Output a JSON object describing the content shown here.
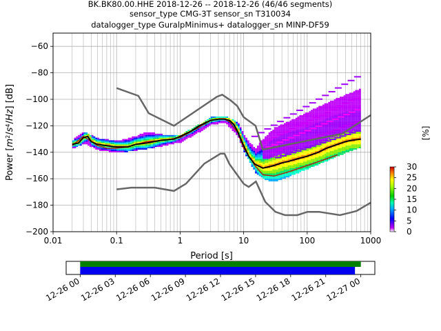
{
  "title_lines": [
    "BK.BK80.00.HHE   2018-12-26 -- 2018-12-26  (46/46 segments)",
    "sensor_type CMG-3T sensor_sn T310034",
    "datalogger_type GuralpMinimus+ datalogger_sn MINP-DF59"
  ],
  "chart_data": [
    {
      "type": "heatmap",
      "title": "BK.BK80.00.HHE   2018-12-26 -- 2018-12-26  (46/46 segments)",
      "xlabel": "Period [s]",
      "ylabel": "Power [m²/s⁴/Hz] [dB]",
      "x_scale": "log",
      "xlim": [
        0.01,
        1000
      ],
      "ylim": [
        -200,
        -50
      ],
      "x_ticks": [
        0.01,
        0.1,
        1,
        10,
        100,
        1000
      ],
      "x_tick_labels": [
        "0.01",
        "0.1",
        "1",
        "10",
        "100",
        "1000"
      ],
      "y_ticks": [
        -200,
        -180,
        -160,
        -140,
        -120,
        -100,
        -80,
        -60
      ],
      "y_tick_labels": [
        "−200",
        "−180",
        "−160",
        "−140",
        "−120",
        "−100",
        "−80",
        "−60"
      ],
      "grid": true,
      "colorbar": {
        "label": "[%]",
        "range": [
          0,
          30
        ],
        "ticks": [
          0,
          5,
          10,
          15,
          20,
          25,
          30
        ],
        "tick_labels": [
          "0",
          "5",
          "10",
          "15",
          "20",
          "25",
          "30"
        ],
        "colormap": [
          "#ffffff",
          "#c000ff",
          "#0000ff",
          "#00aaff",
          "#00ffaa",
          "#00cc00",
          "#aaff00",
          "#ffff00",
          "#ff8800",
          "#cc0000"
        ]
      },
      "noise_models": [
        {
          "name": "NHNM",
          "color": "#666666",
          "x": [
            0.1,
            0.22,
            0.32,
            0.8,
            3.8,
            4.6,
            6.3,
            7.9,
            10,
            15.4,
            20,
            354.8,
            1000
          ],
          "y": [
            -91.5,
            -97.4,
            -110.5,
            -120,
            -98,
            -96.5,
            -101,
            -105,
            -113.5,
            -120,
            -138,
            -126,
            -112
          ]
        },
        {
          "name": "NLNM",
          "color": "#666666",
          "x": [
            0.1,
            0.17,
            0.4,
            0.8,
            1.24,
            2.4,
            4.3,
            5,
            6,
            10,
            12,
            15.6,
            21.9,
            31.6,
            45,
            70,
            101,
            154,
            328,
            600,
            1000
          ],
          "y": [
            -168,
            -166.7,
            -166.7,
            -169.2,
            -163.7,
            -148.6,
            -141.1,
            -141.1,
            -149,
            -163.8,
            -166.2,
            -162.1,
            -177.5,
            -185,
            -187.5,
            -187.5,
            -185,
            -185,
            -187.5,
            -184.4,
            -178
          ]
        }
      ],
      "mean_curve": {
        "name": "mean",
        "color": "#000000",
        "x": [
          0.02,
          0.025,
          0.03,
          0.035,
          0.04,
          0.05,
          0.07,
          0.1,
          0.15,
          0.2,
          0.3,
          0.5,
          0.8,
          1,
          1.5,
          2,
          3,
          4,
          5,
          6,
          7,
          8,
          10,
          12,
          15,
          20,
          25,
          30,
          40,
          50,
          70,
          100,
          150,
          200,
          300,
          400,
          500,
          700
        ],
        "y": [
          -134,
          -133,
          -129,
          -128,
          -132,
          -134,
          -135,
          -136,
          -136,
          -134,
          -133,
          -131,
          -130,
          -128,
          -124,
          -120,
          -116,
          -115,
          -115,
          -116,
          -119,
          -124,
          -135,
          -143,
          -149,
          -152,
          -151,
          -150,
          -148,
          -147,
          -145,
          -143,
          -140,
          -137,
          -134,
          -132,
          -131,
          -130
        ]
      },
      "mode_curve": {
        "name": "mode",
        "color": "#cc0000",
        "x": [
          0.02,
          0.03,
          0.04,
          0.05,
          0.07,
          0.1,
          0.15,
          0.2,
          0.3,
          0.5,
          1,
          2,
          3,
          4,
          5,
          6,
          8,
          10,
          15,
          20,
          30,
          50,
          100,
          200,
          300
        ],
        "y": [
          -135,
          -128,
          -132,
          -135,
          -137,
          -137,
          -136,
          -134,
          -132,
          -131,
          -129,
          -121,
          -116,
          -115,
          -115,
          -117,
          -125,
          -137,
          -150,
          -157,
          -158,
          -155,
          -150,
          -145,
          -142
        ]
      },
      "psd_spread": {
        "x": [
          0.02,
          0.03,
          0.05,
          0.1,
          0.2,
          0.3,
          0.5,
          1,
          2,
          3,
          5,
          8,
          10,
          15,
          20,
          30,
          50,
          100,
          200,
          500,
          700
        ],
        "y_low": [
          -137,
          -133,
          -138,
          -140,
          -138,
          -137,
          -135,
          -132,
          -124,
          -119,
          -117,
          -128,
          -140,
          -155,
          -160,
          -162,
          -158,
          -152,
          -146,
          -138,
          -136
        ],
        "y_high": [
          -131,
          -125,
          -130,
          -132,
          -128,
          -125,
          -127,
          -127,
          -119,
          -114,
          -113,
          -118,
          -128,
          -138,
          -130,
          -122,
          -117,
          -110,
          -103,
          -95,
          -92
        ]
      },
      "scatter_tracks": [
        {
          "x0": 15,
          "y0": -128,
          "x1": 620,
          "y1": -83,
          "color": "#a000ff"
        },
        {
          "x0": 20,
          "y0": -133,
          "x1": 620,
          "y1": -99,
          "color": "#d000ff"
        },
        {
          "x0": 25,
          "y0": -136,
          "x1": 620,
          "y1": -108,
          "color": "#ff00ff"
        },
        {
          "x0": 30,
          "y0": -140,
          "x1": 620,
          "y1": -117,
          "color": "#c000ff"
        },
        {
          "x0": 35,
          "y0": -144,
          "x1": 620,
          "y1": -124,
          "color": "#8000ff"
        }
      ]
    },
    {
      "type": "timeline",
      "x_tick_labels": [
        "12-26 00",
        "12-26 03",
        "12-26 06",
        "12-26 09",
        "12-26 12",
        "12-26 15",
        "12-26 18",
        "12-26 21",
        "12-27 00"
      ],
      "x_ticks_hours": [
        0,
        3,
        6,
        9,
        12,
        15,
        18,
        21,
        24
      ],
      "xlim_hours": [
        -1.2,
        25.2
      ],
      "bars": [
        {
          "name": "data coverage",
          "color": "#008000",
          "start_hour": 0,
          "end_hour": 24.0
        },
        {
          "name": "psd coverage",
          "color": "#0000ee",
          "start_hour": 0,
          "end_hour": 23.5
        }
      ]
    }
  ]
}
